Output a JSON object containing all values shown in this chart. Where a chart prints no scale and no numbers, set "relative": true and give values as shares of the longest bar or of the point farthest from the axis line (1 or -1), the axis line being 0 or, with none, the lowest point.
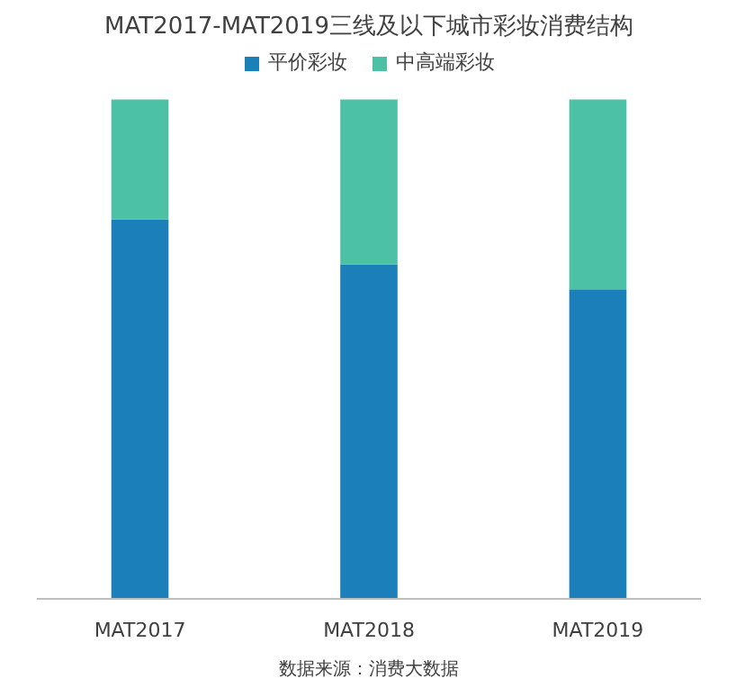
{
  "chart_data": {
    "type": "bar",
    "title": "MAT2017-MAT2019三线及以下城市彩妆消费结构",
    "categories": [
      "MAT2017",
      "MAT2018",
      "MAT2019"
    ],
    "relative": true,
    "stacked": true,
    "legend": "top center",
    "series": [
      {
        "name": "平价彩妆",
        "color": "#1b7fba",
        "values": [
          0.76,
          0.67,
          0.62
        ]
      },
      {
        "name": "中高端彩妆",
        "color": "#4dc1a6",
        "values": [
          0.24,
          0.33,
          0.38
        ]
      }
    ],
    "annotations": [
      "数据来源：消费大数据"
    ]
  }
}
